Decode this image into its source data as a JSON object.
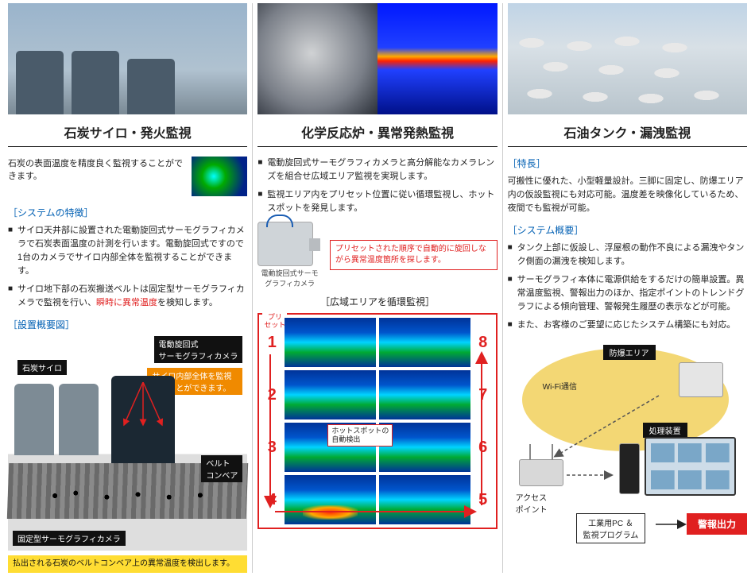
{
  "colors": {
    "red": "#e02020",
    "blue_heading": "#005fb3",
    "yellow_note": "#ffdd33",
    "orange_label": "#f08a00",
    "black_label": "#111111",
    "yellow_oval": "#f3d774"
  },
  "col1": {
    "title": "石炭サイロ・発火監視",
    "blurb": "石炭の表面温度を精度良く監視することができます。",
    "sub_heading": "［システムの特徴］",
    "bullets": [
      "サイロ天井部に設置された電動旋回式サーモグラフィカメラで石炭表面温度の計測を行います。電動旋回式ですので1台のカメラでサイロ内部全体を監視することができます。",
      "サイロ地下部の石炭搬送ベルトは固定型サーモグラフィカメラで監視を行い、<span class=\"highlight-red\">瞬時に異常温度</span>を検知します。"
    ],
    "diagram_title": "［設置概要図］",
    "labels": {
      "rotating_cam": "電動旋回式\nサーモグラフィカメラ",
      "silo": "石炭サイロ",
      "monitor_whole": "サイロ内部全体を監視することができます。",
      "belt": "ベルト\nコンベア",
      "fixed_cam": "固定型サーモグラフィカメラ",
      "yellow_note": "払出される石炭のベルトコンベア上の異常温度を検出します。"
    }
  },
  "col2": {
    "title": "化学反応炉・異常発熱監視",
    "bullets": [
      "電動旋回式サーモグラフィカメラと高分解能なカメラレンズを組合せ広域エリア監視を実現します。",
      "監視エリア内をプリセット位置に従い循環監視し、ホットスポットを発見します。"
    ],
    "red_box": "プリセットされた順序で自動的に旋回しながら異常温度箇所を探します。",
    "cam_caption": "電動旋回式サーモグラフィカメラ",
    "scan_title": "［広域エリアを循環監視］",
    "preset_label": "プリ\nセット",
    "scan_numbers": [
      "1",
      "2",
      "3",
      "4",
      "5",
      "6",
      "7",
      "8"
    ],
    "hotspot_label": "ホットスポットの\n自動検出"
  },
  "col3": {
    "title": "石油タンク・漏洩監視",
    "feature_heading": "［特長］",
    "feature_text": "可搬性に優れた、小型軽量設計。三脚に固定し、防爆エリア内の仮設監視にも対応可能。温度差を映像化しているため、夜間でも監視が可能。",
    "sys_heading": "［システム概要］",
    "bullets": [
      "タンク上部に仮設し、浮屋根の動作不良による漏洩やタンク側面の漏洩を検知します。",
      "サーモグラフィ本体に電源供給をするだけの簡単設置。異常温度監視、警報出力のほか、指定ポイントのトレンドグラフによる傾向管理、警報発生履歴の表示などが可能。",
      "また、お客様のご要望に応じたシステム構築にも対応。"
    ],
    "diagram": {
      "explosion_area": "防爆エリア",
      "wifi": "Wi-Fi通信",
      "processor": "処理装置",
      "access_point": "アクセス\nポイント",
      "pc_program": "工業用PC ＆\n監視プログラム",
      "alert": "警報出力"
    }
  }
}
